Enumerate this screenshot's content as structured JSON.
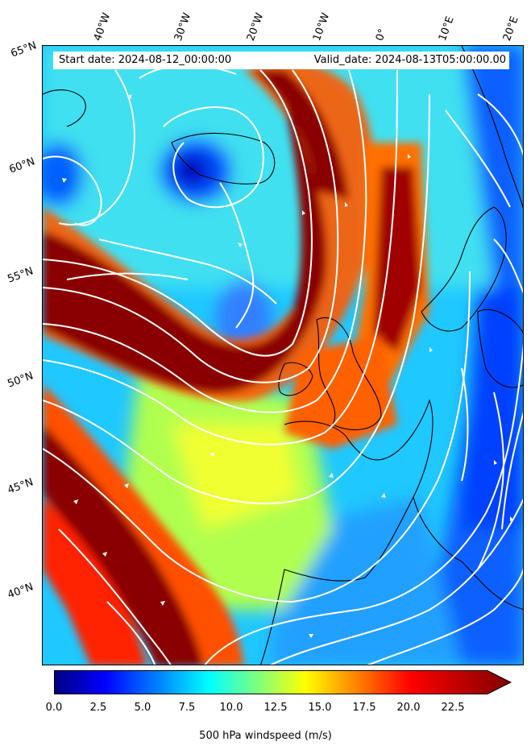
{
  "map": {
    "info": {
      "start": "Start date: 2024-08-12_00:00:00",
      "valid": "Valid_date: 2024-08-13T05:00:00.00"
    },
    "lon_labels": [
      "40°W",
      "30°W",
      "20°W",
      "10°W",
      "0°",
      "10°E",
      "20°E"
    ],
    "lat_labels": [
      "65°N",
      "60°N",
      "55°N",
      "50°N",
      "45°N",
      "40°N"
    ],
    "field": "500 hPa windspeed",
    "colormap": "jet",
    "streamline_color": "#ffffff",
    "coastline_color": "#000000"
  },
  "colorbar": {
    "title": "500 hPa windspeed (m/s)",
    "ticks": [
      "0.0",
      "2.5",
      "5.0",
      "7.5",
      "10.0",
      "12.5",
      "15.0",
      "17.5",
      "20.0",
      "22.5"
    ],
    "range": [
      0,
      25
    ],
    "extend": "max",
    "colors": [
      "#00007f",
      "#0000ff",
      "#007fff",
      "#00ffff",
      "#7fff7f",
      "#ffff00",
      "#ff7f00",
      "#ff0000",
      "#7f0000"
    ]
  }
}
